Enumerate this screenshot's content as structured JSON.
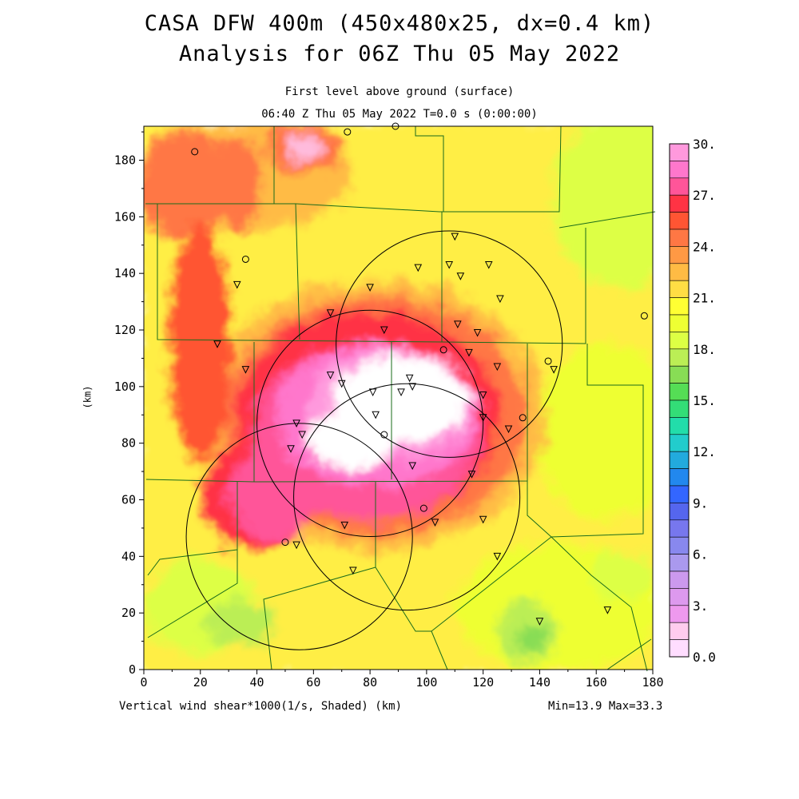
{
  "header": {
    "title_line1": "CASA DFW 400m (450x480x25, dx=0.4 km)",
    "title_line2": "Analysis for 06Z Thu 05 May 2022",
    "subtitle_line1": "First level above ground (surface)",
    "subtitle_line2": "06:40 Z Thu 05 May 2022   T=0.0 s (0:00:00)"
  },
  "footer": {
    "variable_label": "Vertical wind shear*1000(1/s, Shaded)  (km)",
    "min_max": "Min=13.9 Max=33.3"
  },
  "chart_data": {
    "type": "heatmap",
    "title": "CASA DFW 400m (450x480x25, dx=0.4 km)",
    "xlabel": "(km)",
    "ylabel": "(km)",
    "xlim": [
      0,
      180
    ],
    "ylim": [
      0,
      192
    ],
    "x_ticks": [
      "0",
      "20",
      "40",
      "60",
      "80",
      "100",
      "120",
      "140",
      "160",
      "180"
    ],
    "y_ticks": [
      "0",
      "20",
      "40",
      "60",
      "80",
      "100",
      "120",
      "140",
      "160",
      "180"
    ],
    "data_min": 13.9,
    "data_max": 33.3,
    "colorbar": {
      "tick_labels": [
        "30.",
        "27.",
        "24.",
        "21.",
        "18.",
        "15.",
        "12.",
        "9.",
        "6.",
        "3.",
        "0.0"
      ],
      "colors": [
        "#ff99dd",
        "#ff77cc",
        "#ff5599",
        "#ff3344",
        "#ff5533",
        "#ff7744",
        "#ff9944",
        "#ffbb44",
        "#ffdd44",
        "#ffff33",
        "#eeff33",
        "#ddff44",
        "#bbee55",
        "#88dd55",
        "#55dd55",
        "#33dd77",
        "#22ddaa",
        "#22cccc",
        "#22aadd",
        "#2288ee",
        "#3366ff",
        "#5566ee",
        "#7777ee",
        "#8888ee",
        "#aa99ee",
        "#cc99ee",
        "#dd99ee",
        "#ee99ee",
        "#ffccee",
        "#ffddff"
      ]
    },
    "radar_rings": [
      {
        "cx": 108,
        "cy": 115,
        "r": 40
      },
      {
        "cx": 80,
        "cy": 87,
        "r": 40
      },
      {
        "cx": 93,
        "cy": 61,
        "r": 40
      },
      {
        "cx": 55,
        "cy": 47,
        "r": 40
      }
    ],
    "stations_triangle": [
      [
        110,
        153
      ],
      [
        108,
        143
      ],
      [
        97,
        142
      ],
      [
        122,
        143
      ],
      [
        112,
        139
      ],
      [
        80,
        135
      ],
      [
        33,
        136
      ],
      [
        66,
        126
      ],
      [
        126,
        131
      ],
      [
        111,
        122
      ],
      [
        118,
        119
      ],
      [
        85,
        120
      ],
      [
        26,
        115
      ],
      [
        115,
        112
      ],
      [
        125,
        107
      ],
      [
        145,
        106
      ],
      [
        36,
        106
      ],
      [
        66,
        104
      ],
      [
        94,
        103
      ],
      [
        70,
        101
      ],
      [
        95,
        100
      ],
      [
        91,
        98
      ],
      [
        81,
        98
      ],
      [
        120,
        97
      ],
      [
        54,
        87
      ],
      [
        82,
        90
      ],
      [
        120,
        89
      ],
      [
        129,
        85
      ],
      [
        56,
        83
      ],
      [
        52,
        78
      ],
      [
        95,
        72
      ],
      [
        116,
        69
      ],
      [
        120,
        53
      ],
      [
        71,
        51
      ],
      [
        103,
        52
      ],
      [
        54,
        44
      ],
      [
        125,
        40
      ],
      [
        74,
        35
      ],
      [
        164,
        21
      ],
      [
        140,
        17
      ]
    ],
    "stations_circle": [
      [
        18,
        183
      ],
      [
        72,
        190
      ],
      [
        89,
        192
      ],
      [
        36,
        145
      ],
      [
        177,
        125
      ],
      [
        106,
        113
      ],
      [
        143,
        109
      ],
      [
        134,
        89
      ],
      [
        85,
        83
      ],
      [
        99,
        57
      ],
      [
        50,
        45
      ]
    ],
    "high_zone_center": [
      95,
      93
    ],
    "secondary_max_center": [
      55,
      185
    ],
    "secondary_min_center": [
      138,
      15
    ]
  }
}
